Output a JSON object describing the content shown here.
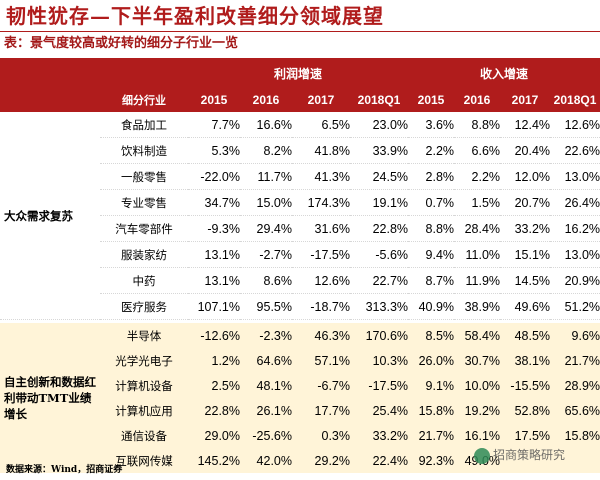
{
  "title": "韧性犹存—下半年盈利改善细分领域展望",
  "subtitle": "表：景气度较高或好转的细分子行业一览",
  "table": {
    "profit_header": "利润增速",
    "revenue_header": "收入增速",
    "col_name": "细分行业",
    "years": [
      "2015",
      "2016",
      "2017",
      "2018Q1"
    ],
    "groups": [
      {
        "label": "大众需求复苏",
        "rows": [
          {
            "name": "食品加工",
            "profit": [
              "7.7%",
              "16.6%",
              "6.5%",
              "23.0%"
            ],
            "revenue": [
              "3.6%",
              "8.8%",
              "12.4%",
              "12.6%"
            ]
          },
          {
            "name": "饮料制造",
            "profit": [
              "5.3%",
              "8.2%",
              "41.8%",
              "33.9%"
            ],
            "revenue": [
              "2.2%",
              "6.6%",
              "20.4%",
              "22.6%"
            ]
          },
          {
            "name": "一般零售",
            "profit": [
              "-22.0%",
              "11.7%",
              "41.3%",
              "24.5%"
            ],
            "revenue": [
              "2.8%",
              "2.2%",
              "12.0%",
              "13.0%"
            ]
          },
          {
            "name": "专业零售",
            "profit": [
              "34.7%",
              "15.0%",
              "174.3%",
              "19.1%"
            ],
            "revenue": [
              "0.7%",
              "1.5%",
              "20.7%",
              "26.4%"
            ]
          },
          {
            "name": "汽车零部件",
            "profit": [
              "-9.3%",
              "29.4%",
              "31.6%",
              "22.8%"
            ],
            "revenue": [
              "8.8%",
              "28.4%",
              "33.2%",
              "16.2%"
            ]
          },
          {
            "name": "服装家纺",
            "profit": [
              "13.1%",
              "-2.7%",
              "-17.5%",
              "-5.6%"
            ],
            "revenue": [
              "9.4%",
              "11.0%",
              "15.1%",
              "13.0%"
            ]
          },
          {
            "name": "中药",
            "profit": [
              "13.1%",
              "8.6%",
              "12.6%",
              "22.7%"
            ],
            "revenue": [
              "8.7%",
              "11.9%",
              "14.5%",
              "20.9%"
            ]
          },
          {
            "name": "医疗服务",
            "profit": [
              "107.1%",
              "95.5%",
              "-18.7%",
              "313.3%"
            ],
            "revenue": [
              "40.9%",
              "38.9%",
              "49.6%",
              "51.2%"
            ]
          }
        ]
      },
      {
        "label": "自主创新和数据红利带动TMT业绩增长",
        "rows": [
          {
            "name": "半导体",
            "profit": [
              "-12.6%",
              "-2.3%",
              "46.3%",
              "170.6%"
            ],
            "revenue": [
              "8.5%",
              "58.4%",
              "48.5%",
              "9.6%"
            ]
          },
          {
            "name": "光学光电子",
            "profit": [
              "1.2%",
              "64.6%",
              "57.1%",
              "10.3%"
            ],
            "revenue": [
              "26.0%",
              "30.7%",
              "38.1%",
              "21.7%"
            ]
          },
          {
            "name": "计算机设备",
            "profit": [
              "2.5%",
              "48.1%",
              "-6.7%",
              "-17.5%"
            ],
            "revenue": [
              "9.1%",
              "10.0%",
              "-15.5%",
              "28.9%"
            ]
          },
          {
            "name": "计算机应用",
            "profit": [
              "22.8%",
              "26.1%",
              "17.7%",
              "25.4%"
            ],
            "revenue": [
              "15.8%",
              "19.2%",
              "52.8%",
              "65.6%"
            ]
          },
          {
            "name": "通信设备",
            "profit": [
              "29.0%",
              "-25.6%",
              "0.3%",
              "33.2%"
            ],
            "revenue": [
              "21.7%",
              "16.1%",
              "17.5%",
              "15.8%"
            ]
          },
          {
            "name": "互联网传媒",
            "profit": [
              "145.2%",
              "42.0%",
              "29.2%",
              "22.4%"
            ],
            "revenue": [
              "92.3%",
              "49.0%",
              "",
              ""
            ]
          }
        ]
      }
    ]
  },
  "footer": "数据来源：Wind，招商证券",
  "watermark": "招商策略研究",
  "colors": {
    "accent": "#b01c1c",
    "section_b_bg": "#fff4d8"
  }
}
